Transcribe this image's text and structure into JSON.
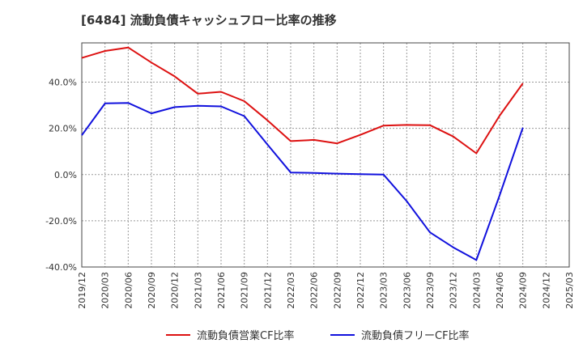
{
  "chart_data": {
    "type": "line",
    "title": "[6484]  流動負債キャッシュフロー比率の推移",
    "xlabel": "",
    "ylabel": "",
    "ylim": [
      -40,
      57
    ],
    "yticks": [
      -40,
      -20,
      0,
      20,
      40
    ],
    "ytick_labels": [
      "-40.0%",
      "-20.0%",
      "0.0%",
      "20.0%",
      "40.0%"
    ],
    "categories": [
      "2019/12",
      "2020/03",
      "2020/06",
      "2020/09",
      "2020/12",
      "2021/03",
      "2021/06",
      "2021/09",
      "2021/12",
      "2022/03",
      "2022/06",
      "2022/09",
      "2022/12",
      "2023/03",
      "2023/06",
      "2023/09",
      "2023/12",
      "2024/03",
      "2024/06",
      "2024/09",
      "2024/12",
      "2025/03"
    ],
    "grid": true,
    "legend_position": "bottom",
    "series": [
      {
        "name": "流動負債営業CF比率",
        "color": "#dd1111",
        "values": [
          50.5,
          53.5,
          55.0,
          48.5,
          42.5,
          35.0,
          35.8,
          31.8,
          23.5,
          14.5,
          15.0,
          13.5,
          17.2,
          21.2,
          21.5,
          21.4,
          16.5,
          9.2,
          25.5,
          39.5,
          null,
          null
        ]
      },
      {
        "name": "流動負債フリーCF比率",
        "color": "#1111dd",
        "values": [
          17.0,
          30.8,
          31.0,
          26.5,
          29.2,
          29.8,
          29.5,
          25.3,
          13.0,
          0.9,
          0.7,
          0.4,
          0.2,
          0.0,
          -11.5,
          -25.0,
          -31.5,
          -37.0,
          -9.0,
          20.3,
          null,
          null
        ]
      }
    ]
  }
}
